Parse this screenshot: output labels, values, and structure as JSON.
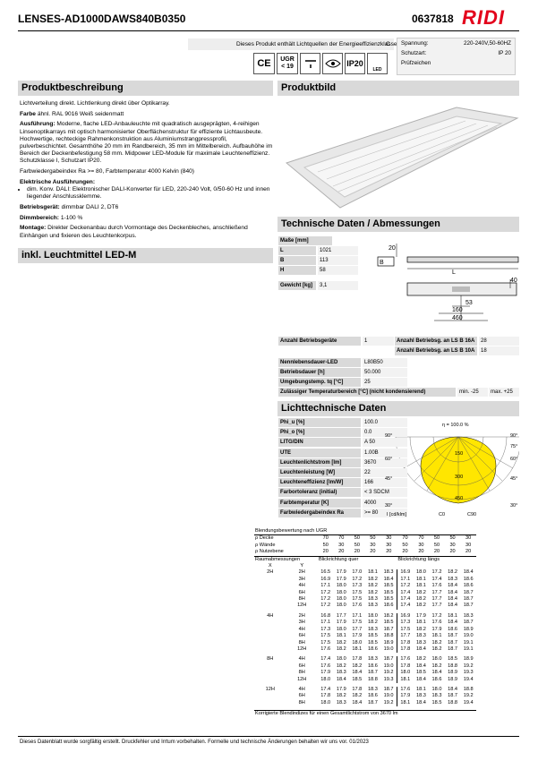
{
  "header": {
    "model": "LENSES-AD1000DAWS840B0350",
    "article": "0637818",
    "logo": "RIDI"
  },
  "energy": {
    "text": "Dieses Produkt enthält Lichtquellen der Energieeffizienzklasse",
    "class": "C"
  },
  "icons": {
    "ce": "CE",
    "ugr": "UGR",
    "ugr_value": "< 19",
    "ip": "IP20",
    "led": "LED"
  },
  "specs": {
    "rows": [
      [
        "Spannung:",
        "220-240V,50-60HZ"
      ],
      [
        "Schutzart:",
        "IP 20"
      ]
    ],
    "approval": "Prüfzeichen"
  },
  "sections": {
    "description": "Produktbeschreibung",
    "image": "Produktbild",
    "lamp": "inkl. Leuchtmittel LED-M",
    "technical": "Technische Daten / Abmessungen",
    "photometric": "Lichttechnische Daten"
  },
  "description": [
    {
      "text": "Lichtverteilung direkt. Lichtlenkung direkt über Optikarray."
    },
    {
      "label": "Farbe",
      "text": "ähnl. RAL 9016 Weiß seidenmatt"
    },
    {
      "label": "Ausführung:",
      "text": "Moderne, flache LED-Anbauleuchte mit quadratisch ausgeprägten, 4-reihigen Linsenoptikarrays mit optisch harmonisierter Oberflächenstruktur für effiziente Lichtausbeute. Hochwertige, rechteckige Rahmenkonstruktion aus Aluminiumstrangpressprofil, pulverbeschichtet. Gesamthöhe 20 mm im Randbereich, 35 mm im Mittelbereich. Aufbauhöhe im Bereich der Deckenbefestigung 58 mm. Midpower LED-Module für maximale Leuchteneffizienz. Schutzklasse I, Schutzart IP20."
    },
    {
      "text": "Farbwiedergabeindex Ra >= 80, Farbtemperatur 4000 Kelvin (840)"
    },
    {
      "label": "Elektrische Ausführungen:",
      "bullet": "dim. Konv. DALI: Elektronischer DALI-Konverter für LED, 220-240 Volt, 0/50-60 Hz und innen liegender Anschlussklemme."
    },
    {
      "label": "Betriebsgerät:",
      "text": "dimmbar DALI 2, DT6"
    },
    {
      "label": "Dimmbereich:",
      "text": "1-100 %"
    },
    {
      "label": "Montage:",
      "text": "Direkter Deckenanbau durch Vormontage des Deckenbleches, anschließend Einhängen und fixieren des Leuchtenkorpus."
    }
  ],
  "dimensions": {
    "heading": "Maße [mm]",
    "rows": [
      [
        "L",
        "1021"
      ],
      [
        "B",
        "113"
      ],
      [
        "H",
        "58"
      ]
    ],
    "weight": [
      "Gewicht [kg]",
      "3,1"
    ]
  },
  "drawing": {
    "height": "20",
    "width": "B",
    "length": "L",
    "depth": "40",
    "a": "53",
    "b": "160",
    "c": "460"
  },
  "operation": {
    "left": [
      "Anzahl Betriebsgeräte",
      "1"
    ],
    "right": [
      [
        "Anzahl Betriebsg. an LS B 16A",
        "28"
      ],
      [
        "Anzahl Betriebsg. an LS B 10A",
        "18"
      ]
    ]
  },
  "life": [
    [
      "Nennlebensdauer-LED",
      "L80B50"
    ],
    [
      "Betriebsdauer [h]",
      "50.000"
    ],
    [
      "Umgebungstemp. tq [°C]",
      "25"
    ],
    [
      "Zulässiger Temperaturbereich [°C] (nicht kondensierend)",
      "min. -25",
      "max. +25"
    ]
  ],
  "photometric": [
    [
      "Phi_u [%]",
      "100.0"
    ],
    [
      "Phi_o [%]",
      "0.0"
    ],
    [
      "LITG/DIN",
      "A 50"
    ],
    [
      "UTE",
      "1.00B"
    ],
    [
      "Leuchtenlichtstrom [lm]",
      "3670"
    ],
    [
      "Leuchtenleistung [W]",
      "22"
    ],
    [
      "Leuchteneffizienz [lm/W]",
      "166"
    ],
    [
      "Farbortoleranz (initial)",
      "< 3 SDCM"
    ],
    [
      "Farbtemperatur [K]",
      "4000"
    ],
    [
      "Farbwiedergabeindex Ra",
      ">= 80"
    ]
  ],
  "polar": {
    "efficiency": "η = 100.0 %",
    "angles_left": [
      "90°",
      "60°",
      "45°",
      "30°"
    ],
    "angles_right": [
      "90°",
      "75°",
      "60°",
      "45°",
      "30°"
    ],
    "rings": [
      "150",
      "300",
      "450"
    ],
    "unit": "I [cd/klm]",
    "c0": "C0",
    "c90": "C90"
  },
  "ugr": {
    "caption": "Blendungsbewertung nach UGR",
    "reflectances": [
      [
        "ρ Decke",
        "70",
        "70",
        "50",
        "50",
        "30",
        "70",
        "70",
        "50",
        "50",
        "30"
      ],
      [
        "ρ Wände",
        "50",
        "30",
        "50",
        "30",
        "30",
        "50",
        "30",
        "50",
        "30",
        "30"
      ],
      [
        "ρ Nutzebene",
        "20",
        "20",
        "20",
        "20",
        "20",
        "20",
        "20",
        "20",
        "20",
        "20"
      ]
    ],
    "room": "Raumabmessungen",
    "x": "X",
    "y": "Y",
    "across": "Blickrichtung quer",
    "along": "Blickrichtung längs",
    "groups": [
      {
        "x": "2H",
        "rows": [
          [
            "2H",
            "16.5",
            "17.9",
            "17.0",
            "18.1",
            "18.3",
            "16.9",
            "18.0",
            "17.2",
            "18.2",
            "18.4"
          ],
          [
            "3H",
            "16.9",
            "17.9",
            "17.2",
            "18.2",
            "18.4",
            "17.1",
            "18.1",
            "17.4",
            "18.3",
            "18.6"
          ],
          [
            "4H",
            "17.1",
            "18.0",
            "17.3",
            "18.2",
            "18.5",
            "17.2",
            "18.1",
            "17.6",
            "18.4",
            "18.6"
          ],
          [
            "6H",
            "17.2",
            "18.0",
            "17.5",
            "18.2",
            "18.5",
            "17.4",
            "18.2",
            "17.7",
            "18.4",
            "18.7"
          ],
          [
            "8H",
            "17.2",
            "18.0",
            "17.5",
            "18.3",
            "18.5",
            "17.4",
            "18.2",
            "17.7",
            "18.4",
            "18.7"
          ],
          [
            "12H",
            "17.2",
            "18.0",
            "17.6",
            "18.3",
            "18.6",
            "17.4",
            "18.2",
            "17.7",
            "18.4",
            "18.7"
          ]
        ]
      },
      {
        "x": "4H",
        "rows": [
          [
            "2H",
            "16.8",
            "17.7",
            "17.1",
            "18.0",
            "18.2",
            "16.9",
            "17.9",
            "17.2",
            "18.1",
            "18.3"
          ],
          [
            "3H",
            "17.1",
            "17.9",
            "17.5",
            "18.2",
            "18.5",
            "17.3",
            "18.1",
            "17.6",
            "18.4",
            "18.7"
          ],
          [
            "4H",
            "17.3",
            "18.0",
            "17.7",
            "18.3",
            "18.7",
            "17.5",
            "18.2",
            "17.9",
            "18.6",
            "18.9"
          ],
          [
            "6H",
            "17.5",
            "18.1",
            "17.9",
            "18.5",
            "18.8",
            "17.7",
            "18.3",
            "18.1",
            "18.7",
            "19.0"
          ],
          [
            "8H",
            "17.5",
            "18.2",
            "18.0",
            "18.5",
            "18.9",
            "17.8",
            "18.3",
            "18.2",
            "18.7",
            "19.1"
          ],
          [
            "12H",
            "17.6",
            "18.2",
            "18.1",
            "18.6",
            "19.0",
            "17.8",
            "18.4",
            "18.2",
            "18.7",
            "19.1"
          ]
        ]
      },
      {
        "x": "8H",
        "rows": [
          [
            "4H",
            "17.4",
            "18.0",
            "17.8",
            "18.3",
            "18.7",
            "17.6",
            "18.2",
            "18.0",
            "18.5",
            "18.9"
          ],
          [
            "6H",
            "17.6",
            "18.2",
            "18.2",
            "18.6",
            "19.0",
            "17.8",
            "18.4",
            "18.2",
            "18.8",
            "19.2"
          ],
          [
            "8H",
            "17.9",
            "18.3",
            "18.4",
            "18.7",
            "19.2",
            "18.0",
            "18.5",
            "18.4",
            "18.9",
            "19.3"
          ],
          [
            "12H",
            "18.0",
            "18.4",
            "18.5",
            "18.8",
            "19.3",
            "18.1",
            "18.4",
            "18.6",
            "18.9",
            "19.4"
          ]
        ]
      },
      {
        "x": "12H",
        "rows": [
          [
            "4H",
            "17.4",
            "17.9",
            "17.8",
            "18.3",
            "18.7",
            "17.6",
            "18.1",
            "18.0",
            "18.4",
            "18.8"
          ],
          [
            "6H",
            "17.8",
            "18.2",
            "18.2",
            "18.6",
            "19.0",
            "17.9",
            "18.3",
            "18.3",
            "18.7",
            "19.2"
          ],
          [
            "8H",
            "18.0",
            "18.3",
            "18.4",
            "18.7",
            "19.2",
            "18.1",
            "18.4",
            "18.5",
            "18.8",
            "19.4"
          ]
        ]
      }
    ],
    "note": "Korrigierte Blendindizes für einen Gesamtlichtstrom von 3670 lm"
  },
  "footer": "Dieses Datenblatt wurde sorgfältig erstellt. Druckfehler und Irrtum vorbehalten. Formelle und technische Änderungen behalten wir uns vor. 01/2023"
}
